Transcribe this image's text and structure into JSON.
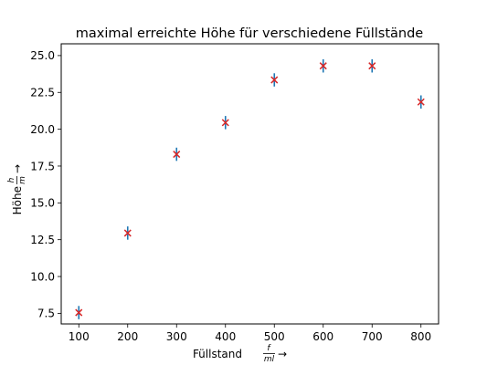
{
  "chart_data": {
    "type": "scatter",
    "title": "maximal erreichte Höhe für verschiedene Füllstände",
    "xlabel": {
      "prefix": "Füllstand",
      "frac_num": "f",
      "frac_den": "ml",
      "arrow": "→"
    },
    "ylabel": {
      "prefix": "Höhe",
      "frac_num": "h",
      "frac_den": "m",
      "arrow": "→"
    },
    "xlim": [
      64,
      836
    ],
    "ylim": [
      6.78,
      25.8
    ],
    "xticks": [
      100,
      200,
      300,
      400,
      500,
      600,
      700,
      800
    ],
    "xtick_labels": [
      "100",
      "200",
      "300",
      "400",
      "500",
      "600",
      "700",
      "800"
    ],
    "yticks": [
      7.5,
      10.0,
      12.5,
      15.0,
      17.5,
      20.0,
      22.5,
      25.0
    ],
    "ytick_labels": [
      "7.5",
      "10.0",
      "12.5",
      "15.0",
      "17.5",
      "20.0",
      "22.5",
      "25.0"
    ],
    "grid": false,
    "marker_color": "#d62728",
    "errorbar_color": "#1f77b4",
    "points": [
      {
        "x": 100,
        "y": 7.55,
        "yerr": 0.45
      },
      {
        "x": 200,
        "y": 12.95,
        "yerr": 0.45
      },
      {
        "x": 300,
        "y": 18.3,
        "yerr": 0.45
      },
      {
        "x": 400,
        "y": 20.45,
        "yerr": 0.45
      },
      {
        "x": 500,
        "y": 23.35,
        "yerr": 0.45
      },
      {
        "x": 600,
        "y": 24.3,
        "yerr": 0.45
      },
      {
        "x": 700,
        "y": 24.3,
        "yerr": 0.45
      },
      {
        "x": 800,
        "y": 21.85,
        "yerr": 0.45
      }
    ]
  }
}
